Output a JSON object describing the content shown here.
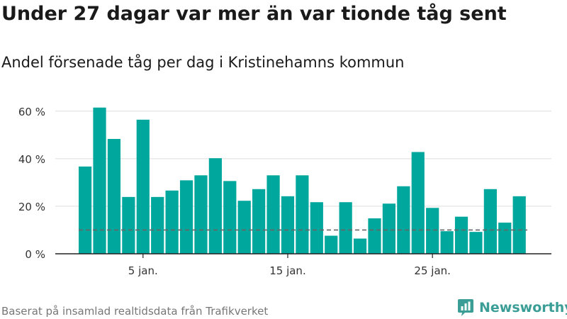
{
  "title": "Under 27 dagar var mer än var tionde tåg sent",
  "subtitle": "Andel försenade tåg per dag i Kristinehamns kommun",
  "source": "Baserat på insamlad realtidsdata från Trafikverket",
  "brand": {
    "name": "Newsworthy",
    "icon": "newsworthy-logo-icon",
    "color": "#3a9e96"
  },
  "colors": {
    "bar": "#00a79d",
    "grid": "#dddddd",
    "reference": "#666666",
    "axis": "#222222"
  },
  "chart_data": {
    "type": "bar",
    "title": "Under 27 dagar var mer än var tionde tåg sent",
    "subtitle": "Andel försenade tåg per dag i Kristinehamns kommun",
    "xlabel": "",
    "ylabel": "",
    "categories": [
      "1 jan.",
      "2 jan.",
      "3 jan.",
      "4 jan.",
      "5 jan.",
      "6 jan.",
      "7 jan.",
      "8 jan.",
      "9 jan.",
      "10 jan.",
      "11 jan.",
      "12 jan.",
      "13 jan.",
      "14 jan.",
      "15 jan.",
      "16 jan.",
      "17 jan.",
      "18 jan.",
      "19 jan.",
      "20 jan.",
      "21 jan.",
      "22 jan.",
      "23 jan.",
      "24 jan.",
      "25 jan.",
      "26 jan.",
      "27 jan.",
      "28 jan.",
      "29 jan.",
      "30 jan.",
      "31 jan."
    ],
    "values": [
      36.7,
      61.5,
      48.3,
      23.9,
      56.4,
      23.9,
      26.6,
      30.9,
      33.0,
      40.2,
      30.6,
      22.3,
      27.2,
      33.0,
      24.2,
      33.0,
      21.7,
      7.6,
      21.7,
      6.4,
      14.9,
      21.1,
      28.4,
      42.8,
      19.3,
      9.5,
      15.6,
      9.2,
      27.2,
      13.1,
      24.2
    ],
    "reference_line": {
      "value": 10,
      "style": "dashed"
    },
    "ylim": [
      0,
      65
    ],
    "y_ticks": [
      {
        "value": 0,
        "label": "0 %"
      },
      {
        "value": 20,
        "label": "20 %"
      },
      {
        "value": 40,
        "label": "40 %"
      },
      {
        "value": 60,
        "label": "60 %"
      }
    ],
    "x_ticks": [
      {
        "index": 4,
        "label": "5 jan."
      },
      {
        "index": 14,
        "label": "15 jan."
      },
      {
        "index": 24,
        "label": "25 jan."
      }
    ],
    "grid": true,
    "legend": "none"
  }
}
